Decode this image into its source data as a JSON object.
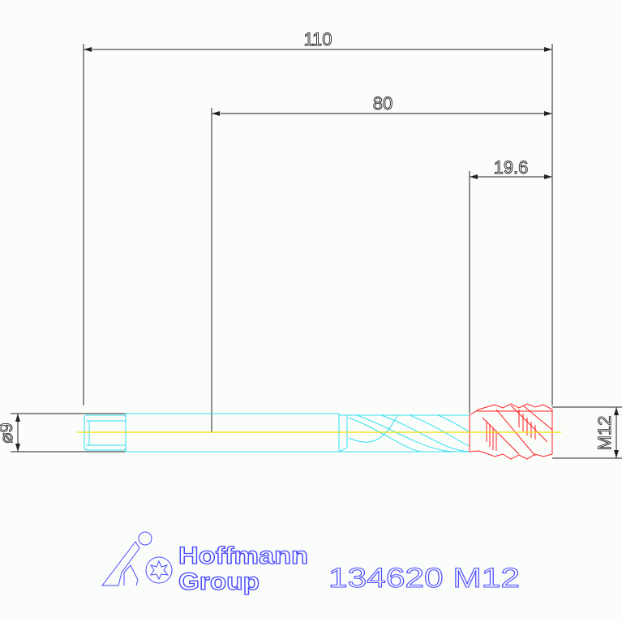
{
  "drawing": {
    "dimensions": {
      "overall_length": "110",
      "shank_to_tip": "80",
      "thread_length": "19.6",
      "shank_diameter": "⌀9",
      "thread_size": "M12"
    },
    "title_block": {
      "logo_text_line1": "Hoffmann",
      "logo_text_line2": "Group",
      "part_label": "134620  M12"
    },
    "colors": {
      "dimension": "#222222",
      "shank": "#33e0f0",
      "thread": "#ff2020",
      "centerline": "#f0e000",
      "logo": "#4a4aff"
    }
  }
}
